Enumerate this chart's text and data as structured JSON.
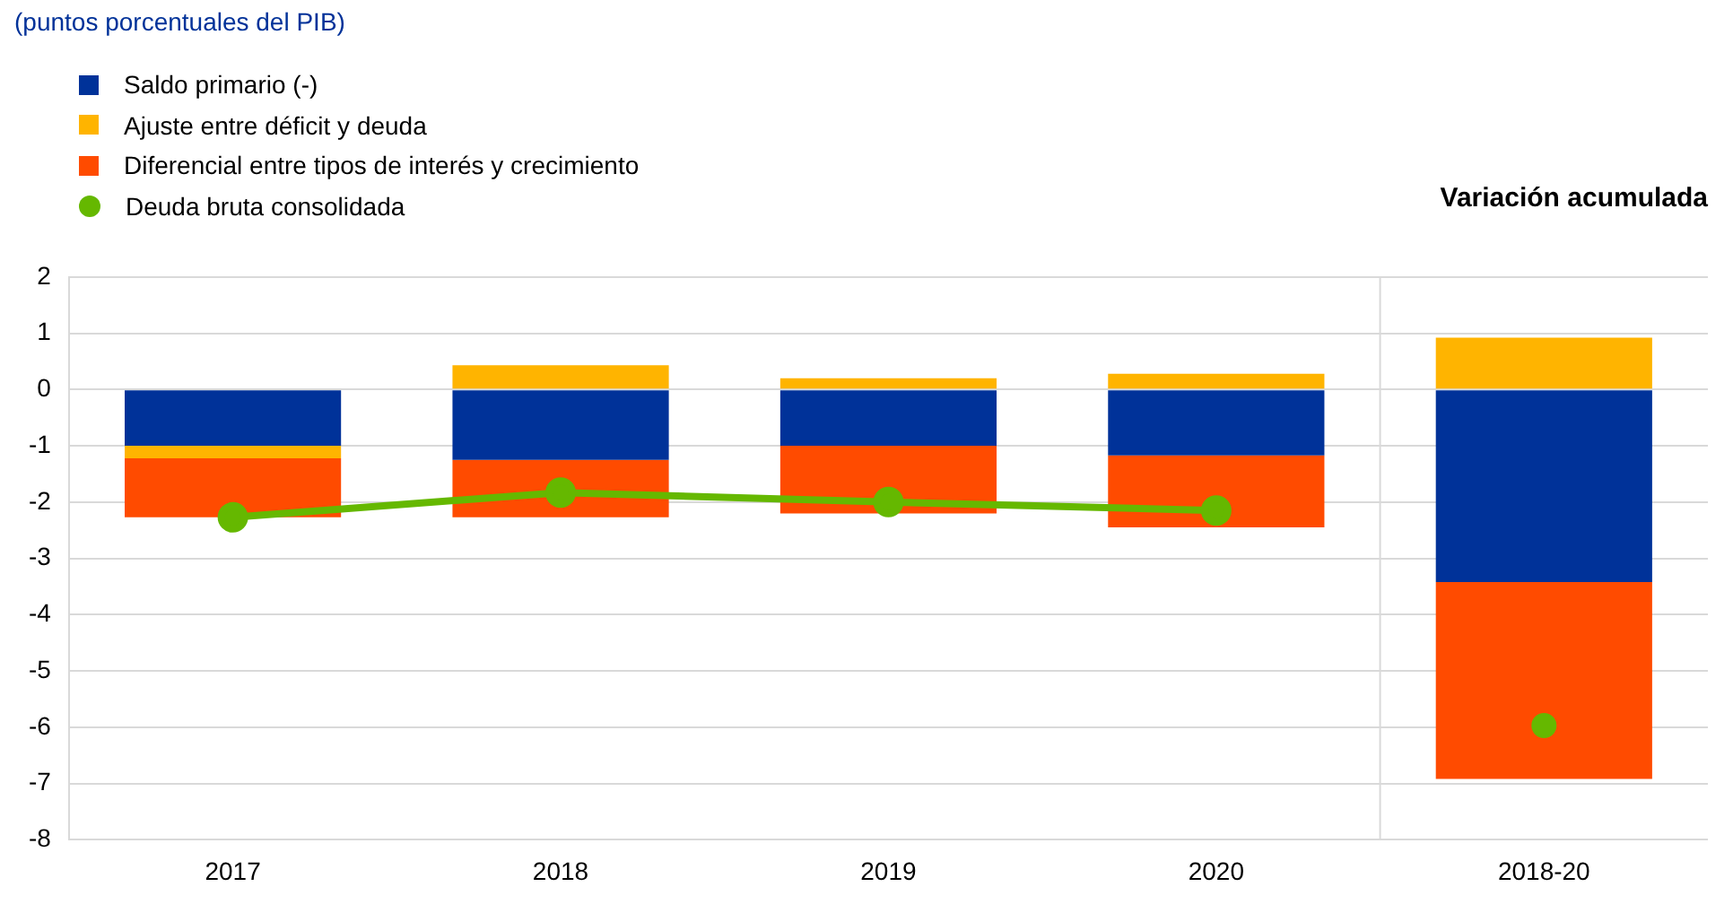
{
  "chart_data": {
    "type": "bar",
    "subtitle": "(puntos porcentuales del PIB)",
    "annotations": [
      "Variación acumulada"
    ],
    "categories": [
      "2017",
      "2018",
      "2019",
      "2020",
      "2018-20"
    ],
    "stacked": true,
    "series": [
      {
        "name": "Saldo primario (-)",
        "color": "#003299",
        "values": [
          -1.0,
          -1.25,
          -1.0,
          -1.17,
          -3.42
        ]
      },
      {
        "name": "Ajuste entre déficit y deuda",
        "color": "#ffb400",
        "values": [
          -0.22,
          0.43,
          0.2,
          0.28,
          0.92
        ]
      },
      {
        "name": "Diferencial entre tipos de interés y crecimiento",
        "color": "#ff4b00",
        "values": [
          -1.05,
          -1.02,
          -1.2,
          -1.28,
          -3.5
        ]
      },
      {
        "name": "Deuda bruta consolidada",
        "type": "line",
        "color": "#65b800",
        "marker": "circle",
        "values": [
          -2.27,
          -1.83,
          -2.0,
          -2.15,
          null
        ]
      },
      {
        "type": "scatter",
        "color": "#65b800",
        "marker": "circle",
        "x": [
          "2018-20"
        ],
        "values": [
          -5.97
        ]
      }
    ],
    "ylim": [
      -8,
      2
    ],
    "yticks": [
      -8,
      -7,
      -6,
      -5,
      -4,
      -3,
      -2,
      -1,
      0,
      1,
      2
    ],
    "grid": "y",
    "legend": "top left"
  }
}
